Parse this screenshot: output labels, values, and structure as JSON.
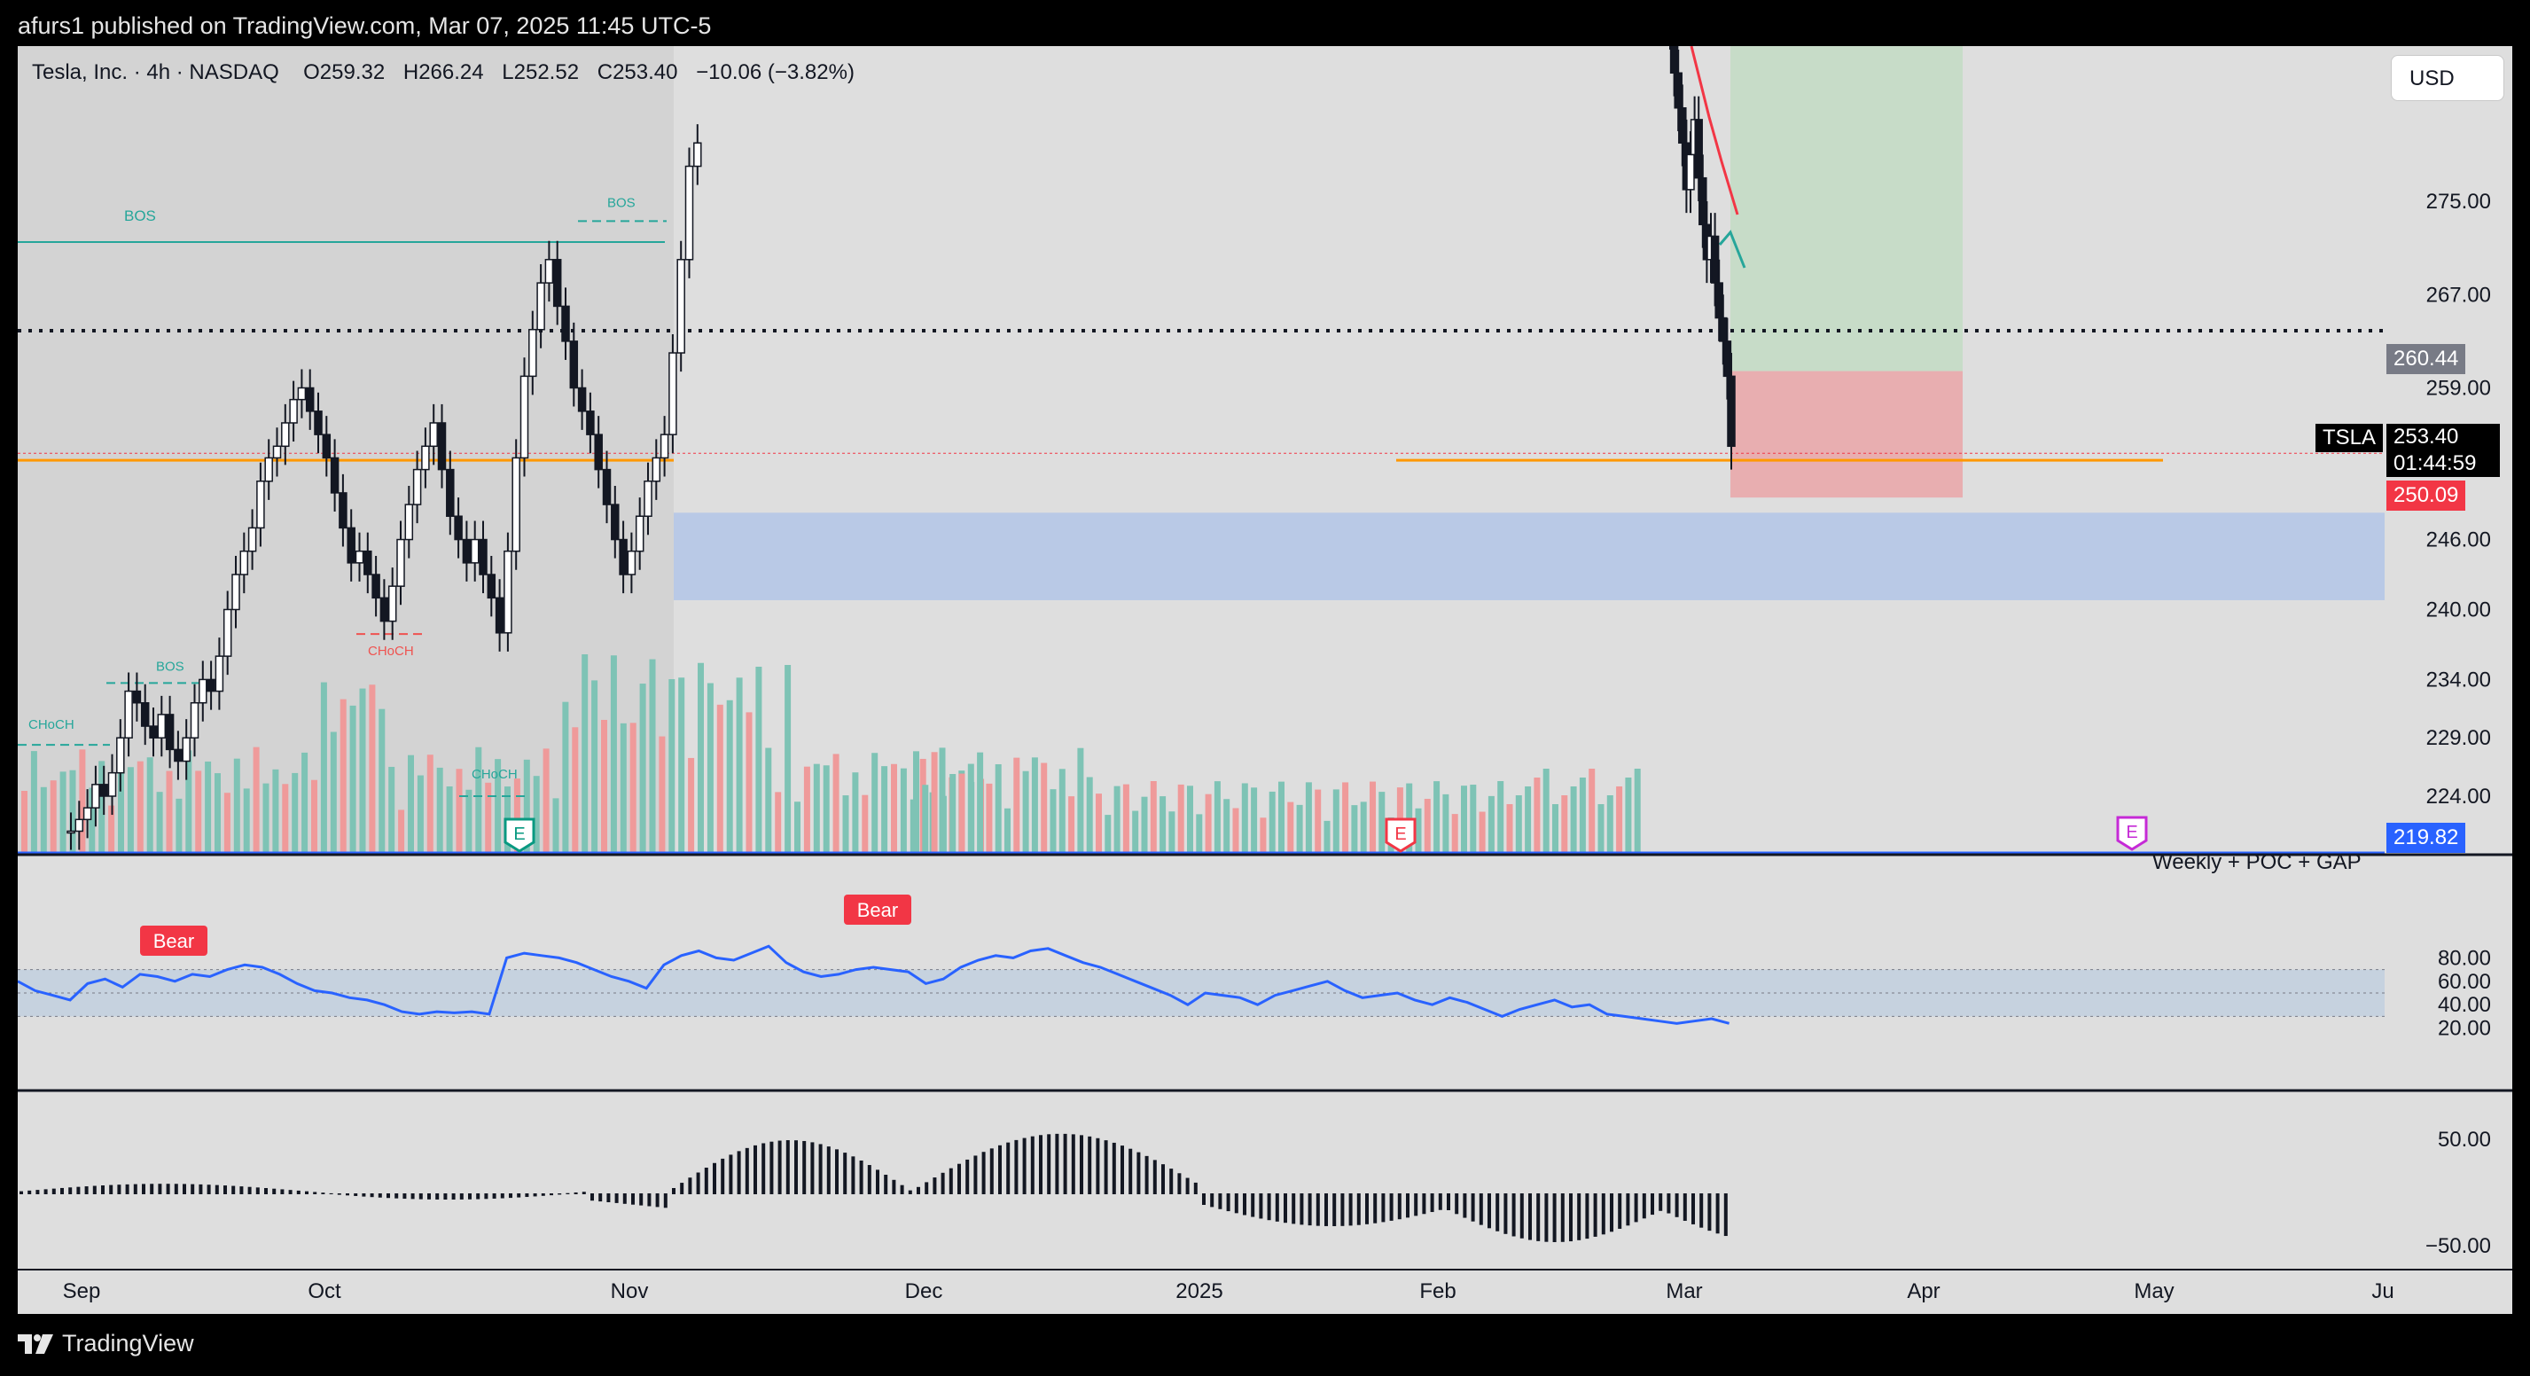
{
  "header": {
    "publisher_text": "afurs1 published on TradingView.com, Mar 07, 2025 11:45 UTC-5"
  },
  "legend": {
    "symbol_text": "Tesla, Inc. · 4h · NASDAQ",
    "open_label": "O",
    "open": "259.32",
    "high_label": "H",
    "high": "266.24",
    "low_label": "L",
    "low": "252.52",
    "close_label": "C",
    "close": "253.40",
    "change": "−10.06 (−3.82%)"
  },
  "currency_button": "USD",
  "price_labels": {
    "ticker": "TSLA",
    "last_price": "253.40",
    "countdown": "01:44:59",
    "stop_level": "250.09",
    "target_level": "260.44",
    "low_level": "219.82"
  },
  "indicator_text": {
    "bos": "BOS",
    "choch": "CHoCH",
    "bear": "Bear",
    "earnings": "E",
    "cut_label": "Weekly + POC + GAP"
  },
  "colors": {
    "up_volume": "#7ec3b5",
    "down_volume": "#ef9a9a",
    "rsi_line": "#2962ff",
    "rsi_band": "#c6d2df",
    "demand_zone": "#b9c9e6",
    "target_zone": "#c7dcc8",
    "stop_zone": "#e8aeb0",
    "orange_line": "#ff9800",
    "bear_label": "#f23645",
    "earnings_green": "#089981",
    "earnings_red": "#f23645",
    "earnings_purple": "#c52ad6"
  },
  "footer": {
    "brand": "TradingView"
  },
  "chart_data": {
    "type": "candlestick",
    "symbol": "TSLA",
    "timeframe": "4h",
    "exchange": "NASDAQ",
    "x_axis": {
      "tick_labels": [
        "Sep",
        "Oct",
        "Nov",
        "Dec",
        "2025",
        "Feb",
        "Mar",
        "Apr",
        "May",
        "Ju"
      ]
    },
    "price_axis": {
      "tick_labels": [
        "275.00",
        "267.00",
        "259.00",
        "246.00",
        "240.00",
        "234.00",
        "229.00",
        "224.00"
      ]
    },
    "rsi_axis": {
      "tick_labels": [
        "80.00",
        "60.00",
        "40.00",
        "20.00"
      ],
      "band": [
        30,
        70
      ]
    },
    "macd_axis": {
      "tick_labels": [
        "50.00",
        "−50.00"
      ]
    },
    "horizontal_levels": [
      {
        "label": "BOS",
        "price": 271.5
      },
      {
        "label": "BOS",
        "price": 273.3
      },
      {
        "label": "CHoCH",
        "price": 237.9
      },
      {
        "label": "BOS",
        "price": 233.7
      },
      {
        "label": "CHoCH",
        "price": 228.4
      },
      {
        "label": "CHoCH",
        "price": 224.0
      },
      {
        "label": "dotted resistance",
        "price": 263.9
      },
      {
        "label": "orange support",
        "price": 252.8
      }
    ],
    "zones": [
      {
        "name": "demand",
        "from": 240.8,
        "to": 248.3
      },
      {
        "name": "target",
        "from": 260.44,
        "to": 290
      },
      {
        "name": "stop",
        "from": 249.6,
        "to": 260.44
      }
    ]
  }
}
